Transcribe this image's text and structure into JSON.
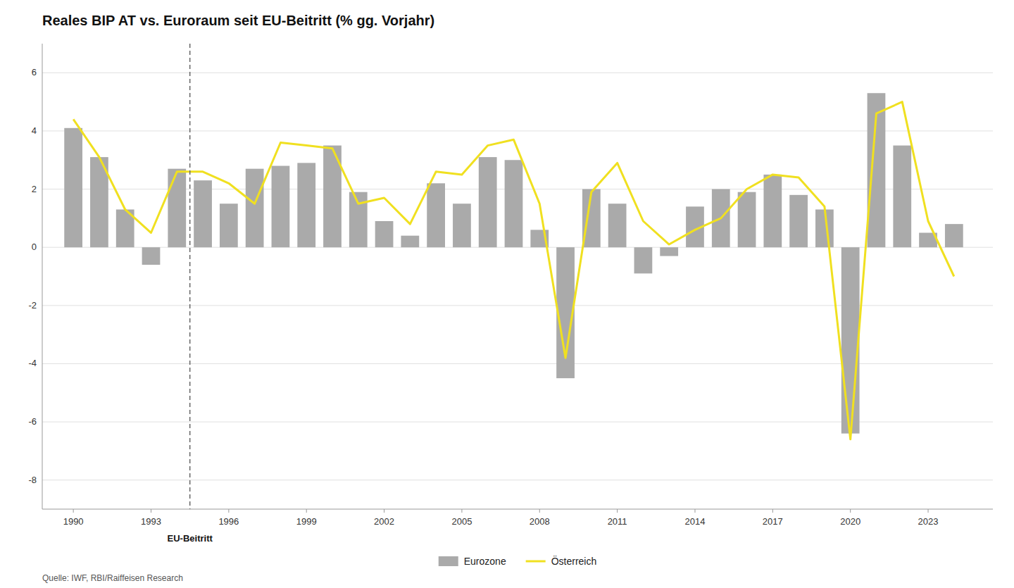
{
  "chart_data": {
    "type": "bar",
    "title": "Reales BIP AT vs. Euroraum seit EU-Beitritt (% gg. Vorjahr)",
    "source": "Quelle: IWF, RBI/Raiffeisen Research",
    "x": [
      1990,
      1991,
      1992,
      1993,
      1994,
      1995,
      1996,
      1997,
      1998,
      1999,
      2000,
      2001,
      2002,
      2003,
      2004,
      2005,
      2006,
      2007,
      2008,
      2009,
      2010,
      2011,
      2012,
      2013,
      2014,
      2015,
      2016,
      2017,
      2018,
      2019,
      2020,
      2021,
      2022,
      2023,
      2024
    ],
    "series": [
      {
        "name": "Eurozone",
        "type": "bar",
        "color": "#aaaaaa",
        "values": [
          4.1,
          3.1,
          1.3,
          -0.6,
          2.7,
          2.3,
          1.5,
          2.7,
          2.8,
          2.9,
          3.5,
          1.9,
          0.9,
          0.4,
          2.2,
          1.5,
          3.1,
          3.0,
          0.6,
          -4.5,
          2.0,
          1.5,
          -0.9,
          -0.3,
          1.4,
          2.0,
          1.9,
          2.5,
          1.8,
          1.3,
          -6.4,
          5.3,
          3.5,
          0.5,
          0.8
        ]
      },
      {
        "name": "Österreich",
        "type": "line",
        "color": "#f0e020",
        "values": [
          4.4,
          3.1,
          1.3,
          0.5,
          2.6,
          2.6,
          2.2,
          1.5,
          3.6,
          3.5,
          3.4,
          1.5,
          1.7,
          0.8,
          2.6,
          2.5,
          3.5,
          3.7,
          1.5,
          -3.8,
          1.9,
          2.9,
          0.9,
          0.1,
          0.6,
          1.0,
          2.0,
          2.5,
          2.4,
          1.4,
          -6.6,
          4.6,
          5.0,
          0.9,
          -1.0
        ]
      }
    ],
    "annotations": [
      {
        "x": 1994.5,
        "text": "EU-Beitritt",
        "color": "#666666"
      }
    ],
    "xlim": [
      1988.8,
      2025.5
    ],
    "xticks": [
      1990,
      1993,
      1996,
      1999,
      2002,
      2005,
      2008,
      2011,
      2014,
      2017,
      2020,
      2023
    ],
    "ylim": [
      -9,
      7
    ],
    "yticks": [
      -8,
      -6,
      -4,
      -2,
      0,
      2,
      4,
      6
    ],
    "grid": true,
    "legend": "bottom"
  }
}
